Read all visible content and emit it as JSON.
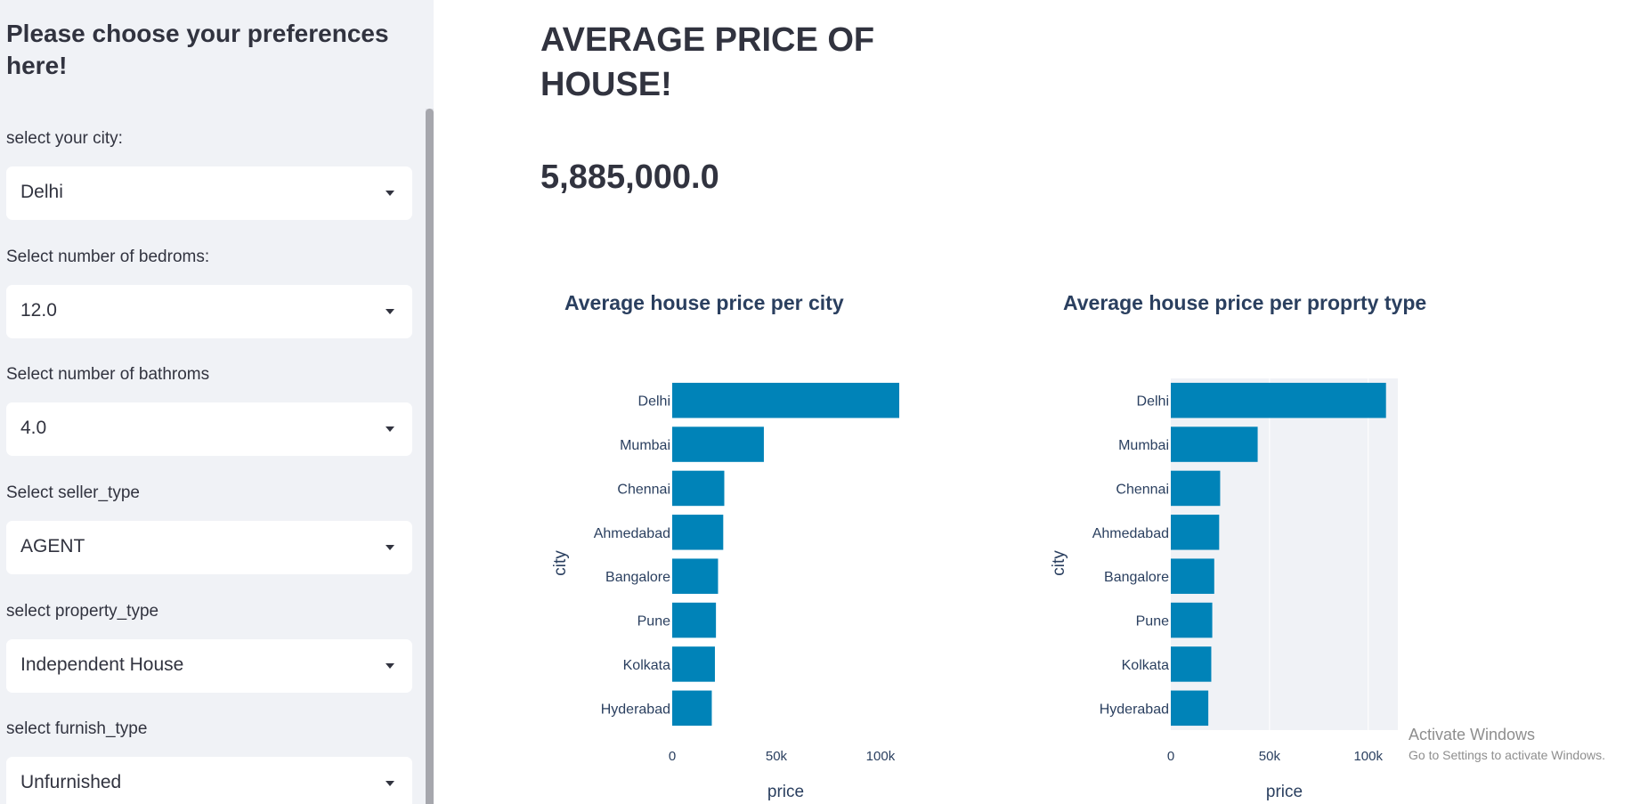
{
  "sidebar": {
    "title": "Please choose your preferences here!",
    "fields": [
      {
        "label": "select your city:",
        "value": "Delhi"
      },
      {
        "label": "Select number of bedroms:",
        "value": "12.0"
      },
      {
        "label": "Select number of bathroms",
        "value": "4.0"
      },
      {
        "label": "Select seller_type",
        "value": "AGENT"
      },
      {
        "label": "select property_type",
        "value": "Independent House"
      },
      {
        "label": "select furnish_type",
        "value": "Unfurnished"
      }
    ]
  },
  "main": {
    "title": "AVERAGE PRICE OF HOUSE!",
    "metric": "5,885,000.0"
  },
  "watermark": {
    "line1": "Activate Windows",
    "line2": "Go to Settings to activate Windows."
  },
  "colors": {
    "bar": "#0083b8",
    "plot_bg_right": "#f0f2f6"
  },
  "chart_data": [
    {
      "type": "bar",
      "orientation": "horizontal",
      "title": "Average house price per city",
      "xlabel": "price",
      "ylabel": "city",
      "categories": [
        "Delhi",
        "Mumbai",
        "Chennai",
        "Ahmedabad",
        "Bangalore",
        "Pune",
        "Kolkata",
        "Hyderabad"
      ],
      "values": [
        109000,
        44000,
        25000,
        24500,
        22000,
        21000,
        20500,
        19000
      ],
      "xlim": [
        0,
        109000
      ],
      "xticks": [
        0,
        50000,
        100000
      ],
      "xtick_labels": [
        "0",
        "50k",
        "100k"
      ],
      "grid": false
    },
    {
      "type": "bar",
      "orientation": "horizontal",
      "title": "Average house price per proprty type",
      "xlabel": "price",
      "ylabel": "city",
      "categories": [
        "Delhi",
        "Mumbai",
        "Chennai",
        "Ahmedabad",
        "Bangalore",
        "Pune",
        "Kolkata",
        "Hyderabad"
      ],
      "values": [
        109000,
        44000,
        25000,
        24500,
        22000,
        21000,
        20500,
        19000
      ],
      "xlim": [
        0,
        115000
      ],
      "xticks": [
        0,
        50000,
        100000
      ],
      "xtick_labels": [
        "0",
        "50k",
        "100k"
      ],
      "grid": true
    }
  ]
}
